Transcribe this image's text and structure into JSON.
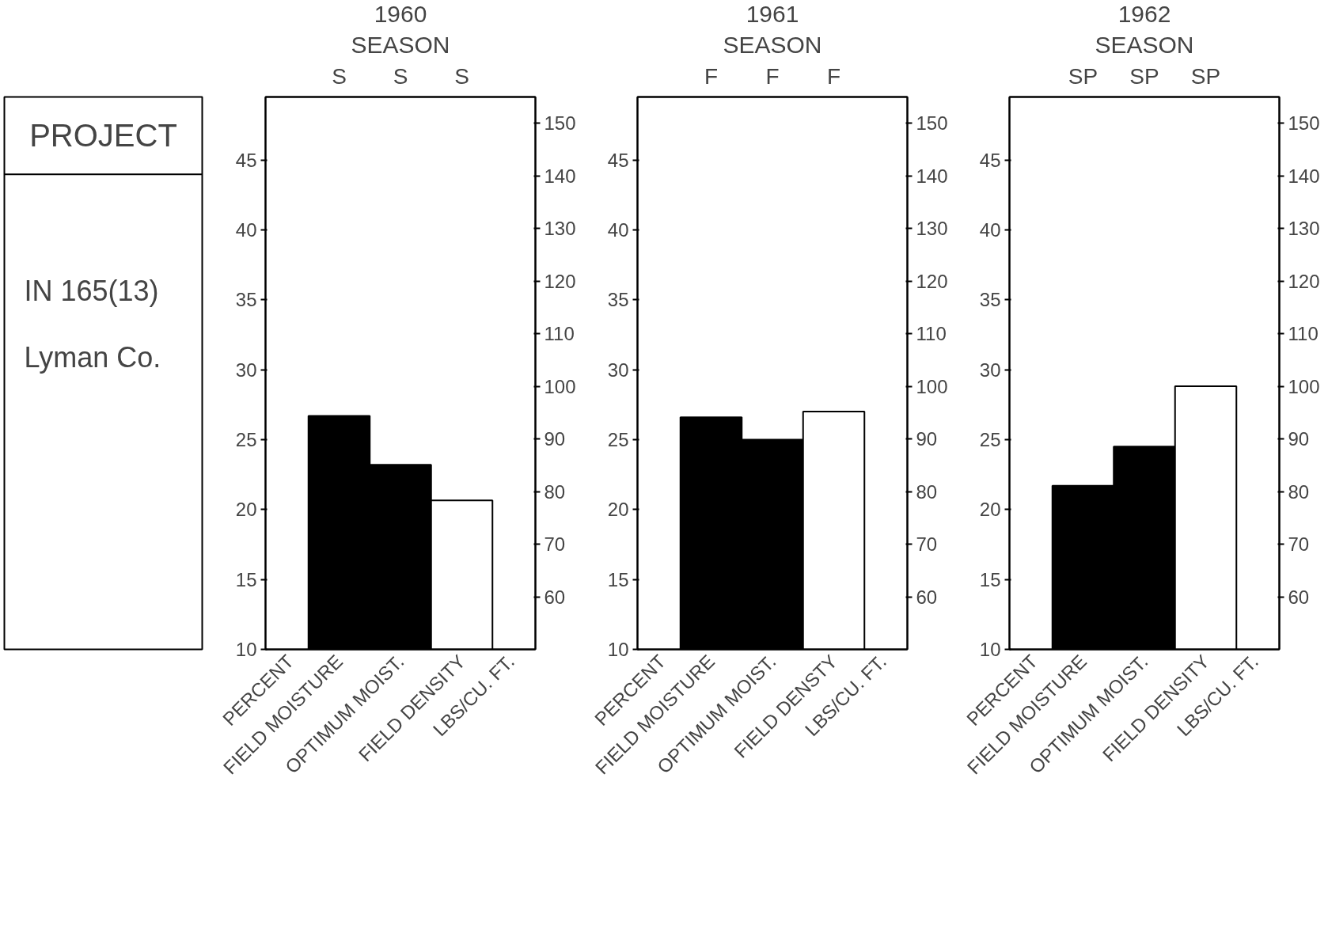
{
  "chart_data": [
    {
      "type": "other",
      "title": "PROJECT",
      "annotations": [
        "IN 165(13)",
        "Lyman Co."
      ]
    },
    {
      "type": "bar",
      "title": "1960",
      "subtitle": "SEASON",
      "categories": [
        "S",
        "S",
        "S"
      ],
      "ylabel": "PERCENT",
      "y2label": "LBS/CU. FT.",
      "ylim": [
        10,
        49.5
      ],
      "yticks": [
        10,
        15,
        20,
        25,
        30,
        35,
        40,
        45
      ],
      "y2lim": [
        50,
        155
      ],
      "y2ticks": [
        60,
        70,
        80,
        90,
        100,
        110,
        120,
        130,
        140,
        150
      ],
      "series": [
        {
          "name": "FIELD MOISTURE",
          "color": "#000000",
          "values": [
            26.7,
            null,
            null
          ]
        },
        {
          "name": "OPTIMUM MOIST.",
          "color": "#000000",
          "values": [
            null,
            23.2,
            null
          ]
        },
        {
          "name": "FIELD DENSITY",
          "color": "#ffffff",
          "axis": "y2",
          "values": [
            null,
            null,
            78.3
          ]
        }
      ]
    },
    {
      "type": "bar",
      "title": "1961",
      "subtitle": "SEASON",
      "categories": [
        "F",
        "F",
        "F"
      ],
      "ylabel": "PERCENT",
      "y2label": "LBS/CU. FT.",
      "ylim": [
        10,
        49.5
      ],
      "yticks": [
        10,
        15,
        20,
        25,
        30,
        35,
        40,
        45
      ],
      "y2lim": [
        50,
        155
      ],
      "y2ticks": [
        60,
        70,
        80,
        90,
        100,
        110,
        120,
        130,
        140,
        150
      ],
      "series": [
        {
          "name": "FIELD MOISTURE",
          "color": "#000000",
          "values": [
            26.6,
            null,
            null
          ]
        },
        {
          "name": "OPTIMUM MOIST.",
          "color": "#000000",
          "values": [
            null,
            25.0,
            null
          ]
        },
        {
          "name": "FIELD DENSTY",
          "color": "#ffffff",
          "axis": "y2",
          "values": [
            null,
            null,
            95.2
          ]
        }
      ]
    },
    {
      "type": "bar",
      "title": "1962",
      "subtitle": "SEASON",
      "categories": [
        "SP",
        "SP",
        "SP"
      ],
      "ylabel": "PERCENT",
      "y2label": "LBS/CU. FT.",
      "ylim": [
        10,
        49.5
      ],
      "yticks": [
        10,
        15,
        20,
        25,
        30,
        35,
        40,
        45
      ],
      "y2lim": [
        50,
        155
      ],
      "y2ticks": [
        60,
        70,
        80,
        90,
        100,
        110,
        120,
        130,
        140,
        150
      ],
      "series": [
        {
          "name": "FIELD MOISTURE",
          "color": "#000000",
          "values": [
            21.7,
            null,
            null
          ]
        },
        {
          "name": "OPTIMUM MOIST.",
          "color": "#000000",
          "values": [
            null,
            24.5,
            null
          ]
        },
        {
          "name": "FIELD DENSITY",
          "color": "#ffffff",
          "axis": "y2",
          "values": [
            null,
            null,
            100
          ]
        }
      ]
    }
  ]
}
